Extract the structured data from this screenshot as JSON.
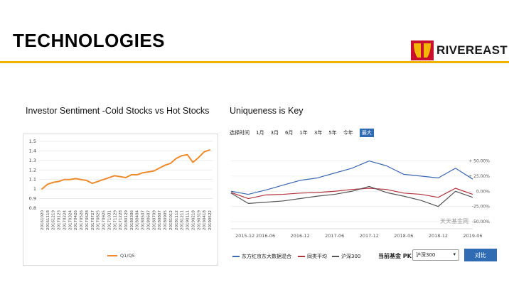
{
  "slide": {
    "title": "TECHNOLOGIES",
    "logo_text": "RIVEREAST",
    "left_heading": "Investor Sentiment -Cold Stocks vs Hot Stocks",
    "right_heading": "Uniqueness is Key"
  },
  "colors": {
    "title_rule": "#f0b400",
    "logo_red": "#c8102e",
    "logo_gold": "#f2b705",
    "sentiment_line": "#ed8b2f",
    "fund_line": "#3c68b0",
    "peer_line": "#b2343d",
    "index_line": "#555555",
    "accent_blue": "#2f6cb3"
  },
  "fund_ui": {
    "range_label": "选择时间",
    "ranges": [
      "1月",
      "3月",
      "6月",
      "1年",
      "3年",
      "5年",
      "今年"
    ],
    "range_active": "最大",
    "watermark": "天天基金网",
    "legend": [
      "东方红京东大数据混合",
      "同类平均",
      "沪深300"
    ],
    "pk_label": "当前基金  PK",
    "pk_selected": "沪深300",
    "compare_button": "对比"
  },
  "chart_data": [
    {
      "type": "line",
      "title": "",
      "xlabel": "",
      "ylabel": "",
      "ylim": [
        0.8,
        1.5
      ],
      "yticks": [
        "0.8",
        "0.9",
        "1",
        "1.1",
        "1.2",
        "1.3",
        "1.4",
        "1.5"
      ],
      "grid": true,
      "legend_position": "bottom",
      "categories": [
        "20161020",
        "20161118",
        "20161219",
        "20170123",
        "20170224",
        "20170324",
        "20170426",
        "20170526",
        "20170628",
        "20170727",
        "20170825",
        "20170925",
        "20171031",
        "20171129",
        "20171228",
        "20180129",
        "20180306",
        "20180404",
        "20180507",
        "20180607",
        "20180709",
        "20180807",
        "20180905",
        "20181012",
        "20181112",
        "20181211",
        "20190111",
        "20190218",
        "20190319",
        "20190418",
        "20190522"
      ],
      "series": [
        {
          "name": "Q1/Q5",
          "values": [
            1.0,
            1.05,
            1.07,
            1.08,
            1.1,
            1.1,
            1.11,
            1.1,
            1.09,
            1.06,
            1.08,
            1.1,
            1.12,
            1.14,
            1.13,
            1.12,
            1.15,
            1.15,
            1.17,
            1.18,
            1.19,
            1.22,
            1.25,
            1.27,
            1.32,
            1.35,
            1.36,
            1.28,
            1.33,
            1.39,
            1.41
          ]
        }
      ]
    },
    {
      "type": "line",
      "title": "",
      "xlabel": "",
      "ylabel": "",
      "ylim": [
        -50,
        60
      ],
      "yticks": [
        "+ 50.00%",
        "+ 25.00%",
        "0.00%",
        "-25.00%",
        "-50.00%"
      ],
      "grid": true,
      "legend_position": "bottom",
      "x": [
        "2015-12",
        "2016-03",
        "2016-06",
        "2016-09",
        "2016-12",
        "2017-03",
        "2017-06",
        "2017-09",
        "2017-12",
        "2018-03",
        "2018-06",
        "2018-09",
        "2018-12",
        "2019-03",
        "2019-06"
      ],
      "xtick_labels": [
        "2015-12",
        "2016-06",
        "2016-12",
        "2017-06",
        "2017-12",
        "2018-06",
        "2018-12",
        "2019-06"
      ],
      "series": [
        {
          "name": "东方红京东大数据混合",
          "values": [
            0,
            -5,
            2,
            10,
            18,
            22,
            30,
            38,
            50,
            42,
            28,
            25,
            22,
            38,
            20
          ]
        },
        {
          "name": "同类平均",
          "values": [
            -2,
            -12,
            -6,
            -5,
            -3,
            -2,
            0,
            3,
            5,
            3,
            -3,
            -5,
            -10,
            5,
            -5
          ]
        },
        {
          "name": "沪深300",
          "values": [
            -3,
            -20,
            -18,
            -16,
            -12,
            -8,
            -5,
            0,
            8,
            -2,
            -8,
            -15,
            -25,
            0,
            -10
          ]
        }
      ]
    }
  ]
}
